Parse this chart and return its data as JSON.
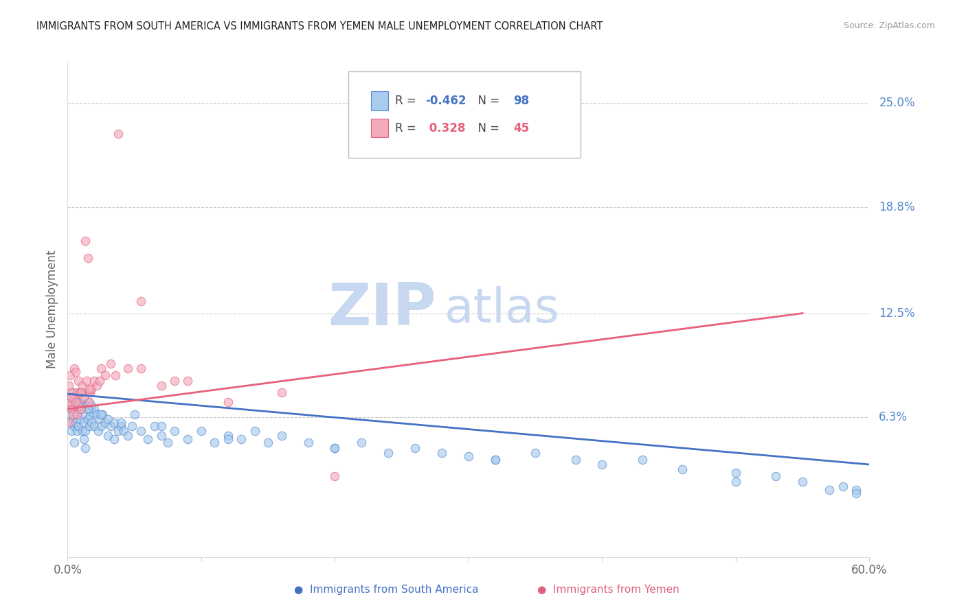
{
  "title": "IMMIGRANTS FROM SOUTH AMERICA VS IMMIGRANTS FROM YEMEN MALE UNEMPLOYMENT CORRELATION CHART",
  "source": "Source: ZipAtlas.com",
  "ylabel": "Male Unemployment",
  "ytick_labels": [
    "6.3%",
    "12.5%",
    "18.8%",
    "25.0%"
  ],
  "ytick_values": [
    0.063,
    0.125,
    0.188,
    0.25
  ],
  "xlim": [
    0.0,
    0.6
  ],
  "ylim": [
    -0.02,
    0.275
  ],
  "color_blue_fill": "#A8CCEE",
  "color_blue_edge": "#5588CC",
  "color_pink_fill": "#F4AABB",
  "color_pink_edge": "#E06080",
  "color_line_blue": "#4472C4",
  "color_line_pink": "#E8607A",
  "color_grid": "#CCCCCC",
  "color_right_labels": "#5588CC",
  "color_bottom_blue": "#4472C4",
  "color_bottom_pink": "#E06080",
  "watermark_zip": "ZIP",
  "watermark_atlas": "atlas",
  "watermark_color": "#C8D8F0",
  "blue_trend_x": [
    0.0,
    0.6
  ],
  "blue_trend_y": [
    0.077,
    0.035
  ],
  "pink_trend_x": [
    0.0,
    0.55
  ],
  "pink_trend_y": [
    0.068,
    0.125
  ],
  "dot_size": 80,
  "blue_x": [
    0.001,
    0.001,
    0.002,
    0.002,
    0.003,
    0.003,
    0.004,
    0.004,
    0.005,
    0.005,
    0.006,
    0.006,
    0.007,
    0.007,
    0.008,
    0.008,
    0.009,
    0.009,
    0.01,
    0.01,
    0.011,
    0.011,
    0.012,
    0.012,
    0.013,
    0.013,
    0.014,
    0.015,
    0.015,
    0.016,
    0.016,
    0.017,
    0.018,
    0.018,
    0.019,
    0.02,
    0.02,
    0.022,
    0.023,
    0.024,
    0.025,
    0.026,
    0.028,
    0.03,
    0.03,
    0.032,
    0.035,
    0.035,
    0.038,
    0.04,
    0.042,
    0.045,
    0.048,
    0.05,
    0.055,
    0.06,
    0.065,
    0.07,
    0.075,
    0.08,
    0.09,
    0.1,
    0.11,
    0.12,
    0.13,
    0.14,
    0.15,
    0.16,
    0.18,
    0.2,
    0.22,
    0.24,
    0.26,
    0.28,
    0.3,
    0.32,
    0.35,
    0.38,
    0.4,
    0.43,
    0.46,
    0.5,
    0.53,
    0.55,
    0.58,
    0.59,
    0.004,
    0.008,
    0.015,
    0.025,
    0.04,
    0.07,
    0.12,
    0.2,
    0.32,
    0.5,
    0.57,
    0.59
  ],
  "blue_y": [
    0.075,
    0.065,
    0.07,
    0.06,
    0.068,
    0.055,
    0.072,
    0.062,
    0.058,
    0.048,
    0.07,
    0.06,
    0.065,
    0.055,
    0.068,
    0.058,
    0.072,
    0.062,
    0.078,
    0.068,
    0.065,
    0.055,
    0.06,
    0.05,
    0.055,
    0.045,
    0.07,
    0.072,
    0.062,
    0.058,
    0.068,
    0.064,
    0.07,
    0.06,
    0.066,
    0.068,
    0.058,
    0.065,
    0.055,
    0.062,
    0.058,
    0.065,
    0.06,
    0.062,
    0.052,
    0.058,
    0.06,
    0.05,
    0.055,
    0.058,
    0.055,
    0.052,
    0.058,
    0.065,
    0.055,
    0.05,
    0.058,
    0.052,
    0.048,
    0.055,
    0.05,
    0.055,
    0.048,
    0.052,
    0.05,
    0.055,
    0.048,
    0.052,
    0.048,
    0.045,
    0.048,
    0.042,
    0.045,
    0.042,
    0.04,
    0.038,
    0.042,
    0.038,
    0.035,
    0.038,
    0.032,
    0.03,
    0.028,
    0.025,
    0.022,
    0.02,
    0.078,
    0.072,
    0.068,
    0.065,
    0.06,
    0.058,
    0.05,
    0.045,
    0.038,
    0.025,
    0.02,
    0.018
  ],
  "pink_x": [
    0.001,
    0.001,
    0.001,
    0.002,
    0.002,
    0.003,
    0.003,
    0.004,
    0.005,
    0.005,
    0.006,
    0.007,
    0.007,
    0.008,
    0.008,
    0.009,
    0.01,
    0.011,
    0.012,
    0.013,
    0.014,
    0.015,
    0.016,
    0.017,
    0.018,
    0.02,
    0.022,
    0.025,
    0.028,
    0.032,
    0.038,
    0.045,
    0.055,
    0.07,
    0.09,
    0.12,
    0.16,
    0.2,
    0.003,
    0.006,
    0.01,
    0.016,
    0.024,
    0.036,
    0.055,
    0.08
  ],
  "pink_y": [
    0.082,
    0.07,
    0.06,
    0.088,
    0.072,
    0.078,
    0.068,
    0.065,
    0.092,
    0.075,
    0.09,
    0.078,
    0.065,
    0.085,
    0.07,
    0.078,
    0.068,
    0.082,
    0.075,
    0.168,
    0.085,
    0.158,
    0.072,
    0.078,
    0.08,
    0.085,
    0.082,
    0.092,
    0.088,
    0.095,
    0.232,
    0.092,
    0.132,
    0.082,
    0.085,
    0.072,
    0.078,
    0.028,
    0.075,
    0.072,
    0.078,
    0.08,
    0.085,
    0.088,
    0.092,
    0.085
  ]
}
